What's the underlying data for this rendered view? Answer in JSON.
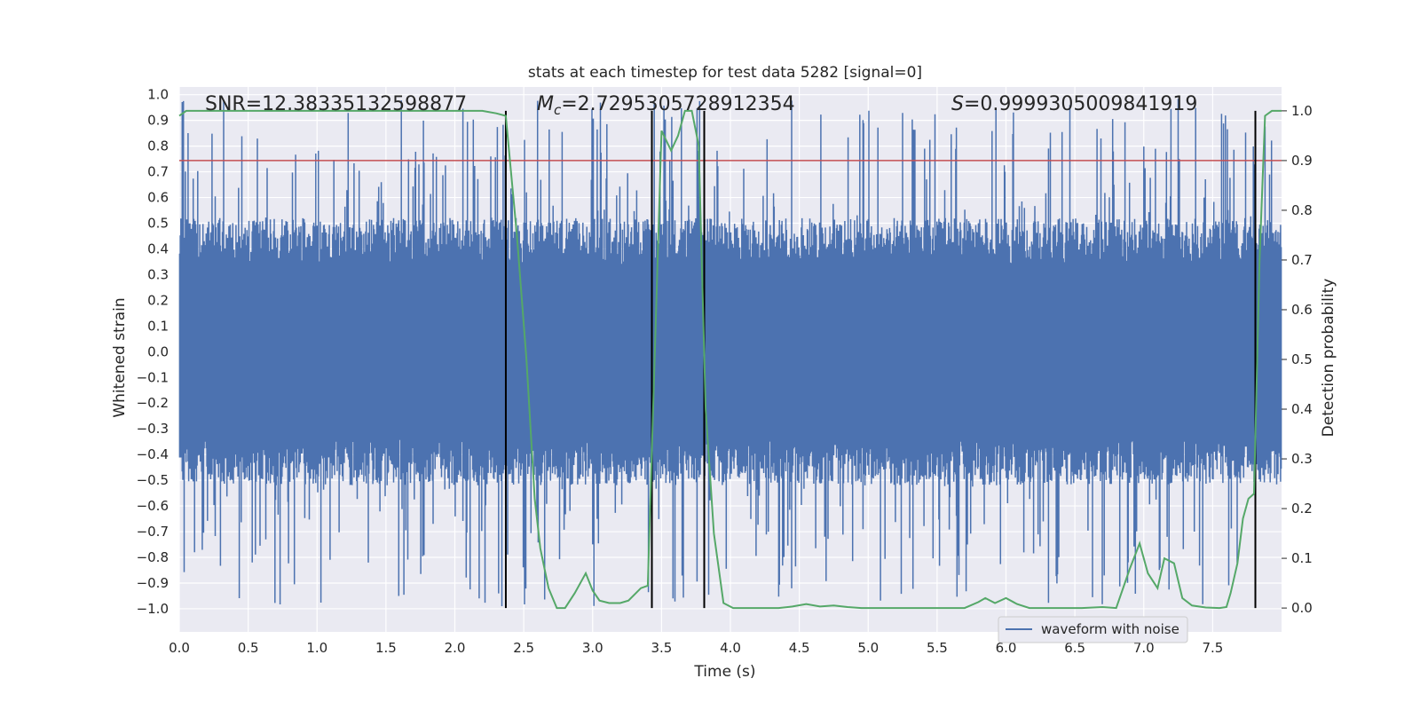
{
  "chart_data": {
    "type": "line",
    "title": "stats at each timestep for test data 5282 [signal=0]",
    "xlabel": "Time (s)",
    "ylabel": "Whitened strain",
    "y2label": "Detection probability",
    "xlim": [
      0.0,
      8.0
    ],
    "ylim": [
      -1.09,
      1.03
    ],
    "y2lim": [
      -0.048,
      1.048
    ],
    "xticks": [
      "0.0",
      "0.5",
      "1.0",
      "1.5",
      "2.0",
      "2.5",
      "3.0",
      "3.5",
      "4.0",
      "4.5",
      "5.0",
      "5.5",
      "6.0",
      "6.5",
      "7.0",
      "7.5"
    ],
    "xtick_values": [
      0.0,
      0.5,
      1.0,
      1.5,
      2.0,
      2.5,
      3.0,
      3.5,
      4.0,
      4.5,
      5.0,
      5.5,
      6.0,
      6.5,
      7.0,
      7.5
    ],
    "yticks": [
      "1.0",
      "0.9",
      "0.8",
      "0.7",
      "0.6",
      "0.5",
      "0.4",
      "0.3",
      "0.2",
      "0.1",
      "0.0",
      "−0.1",
      "−0.2",
      "−0.3",
      "−0.4",
      "−0.5",
      "−0.6",
      "−0.7",
      "−0.8",
      "−0.9",
      "−1.0"
    ],
    "ytick_values": [
      1.0,
      0.9,
      0.8,
      0.7,
      0.6,
      0.5,
      0.4,
      0.3,
      0.2,
      0.1,
      0.0,
      -0.1,
      -0.2,
      -0.3,
      -0.4,
      -0.5,
      -0.6,
      -0.7,
      -0.8,
      -0.9,
      -1.0
    ],
    "y2ticks": [
      "1.0",
      "0.9",
      "0.8",
      "0.7",
      "0.6",
      "0.5",
      "0.4",
      "0.3",
      "0.2",
      "0.1",
      "0.0"
    ],
    "y2tick_values": [
      1.0,
      0.9,
      0.8,
      0.7,
      0.6,
      0.5,
      0.4,
      0.3,
      0.2,
      0.1,
      0.0
    ],
    "annotations": {
      "snr": "SNR=12.38335132598877",
      "mc_symbol": "M",
      "mc_sub": "c",
      "mc_value": "=2.7295305728912354",
      "s_symbol": "S",
      "s_value": "=0.9999305009841919"
    },
    "series": [
      {
        "name": "waveform with noise",
        "color": "#4c72b0",
        "kind": "noise_waveform",
        "core_envelope": [
          -0.34,
          0.34
        ],
        "spike_range": [
          -0.99,
          0.99
        ]
      },
      {
        "name": "detection probability",
        "color": "#55a868",
        "axis": "right",
        "x": [
          0.0,
          0.05,
          0.15,
          0.25,
          0.5,
          0.75,
          1.0,
          1.25,
          1.5,
          1.75,
          2.0,
          2.2,
          2.3,
          2.37,
          2.45,
          2.52,
          2.58,
          2.62,
          2.68,
          2.74,
          2.8,
          2.87,
          2.95,
          3.0,
          3.05,
          3.12,
          3.2,
          3.26,
          3.35,
          3.4,
          3.45,
          3.5,
          3.57,
          3.62,
          3.67,
          3.72,
          3.77,
          3.82,
          3.88,
          3.95,
          4.02,
          4.08,
          4.15,
          4.25,
          4.35,
          4.45,
          4.55,
          4.65,
          4.75,
          4.85,
          4.95,
          5.2,
          5.5,
          5.7,
          5.8,
          5.85,
          5.92,
          6.0,
          6.08,
          6.17,
          6.3,
          6.42,
          6.55,
          6.7,
          6.8,
          6.9,
          6.97,
          7.03,
          7.1,
          7.15,
          7.22,
          7.28,
          7.35,
          7.45,
          7.55,
          7.6,
          7.63,
          7.68,
          7.72,
          7.76,
          7.8,
          7.84,
          7.88,
          7.93,
          8.0
        ],
        "y": [
          0.99,
          1.0,
          1.0,
          1.0,
          1.0,
          1.0,
          1.0,
          1.0,
          1.0,
          1.0,
          1.0,
          1.0,
          0.995,
          0.99,
          0.75,
          0.5,
          0.22,
          0.12,
          0.04,
          0.0,
          0.0,
          0.03,
          0.07,
          0.035,
          0.015,
          0.01,
          0.01,
          0.015,
          0.04,
          0.045,
          0.5,
          0.96,
          0.92,
          0.95,
          1.0,
          1.0,
          0.93,
          0.4,
          0.15,
          0.01,
          0.0,
          0.0,
          0.0,
          0.0,
          0.0,
          0.003,
          0.008,
          0.003,
          0.005,
          0.002,
          0.0,
          0.0,
          0.0,
          0.0,
          0.012,
          0.02,
          0.01,
          0.02,
          0.008,
          0.0,
          0.0,
          0.0,
          0.0,
          0.002,
          0.0,
          0.08,
          0.13,
          0.07,
          0.04,
          0.1,
          0.09,
          0.02,
          0.005,
          0.001,
          0.0,
          0.002,
          0.03,
          0.09,
          0.18,
          0.22,
          0.23,
          0.7,
          0.99,
          1.0,
          1.0
        ]
      }
    ],
    "threshold_line": {
      "y2": 0.9,
      "color": "#c44e52"
    },
    "vertical_lines": [
      2.37,
      3.43,
      3.81,
      7.81
    ],
    "legend": {
      "position": "bottom-right",
      "label": "waveform with noise"
    }
  }
}
